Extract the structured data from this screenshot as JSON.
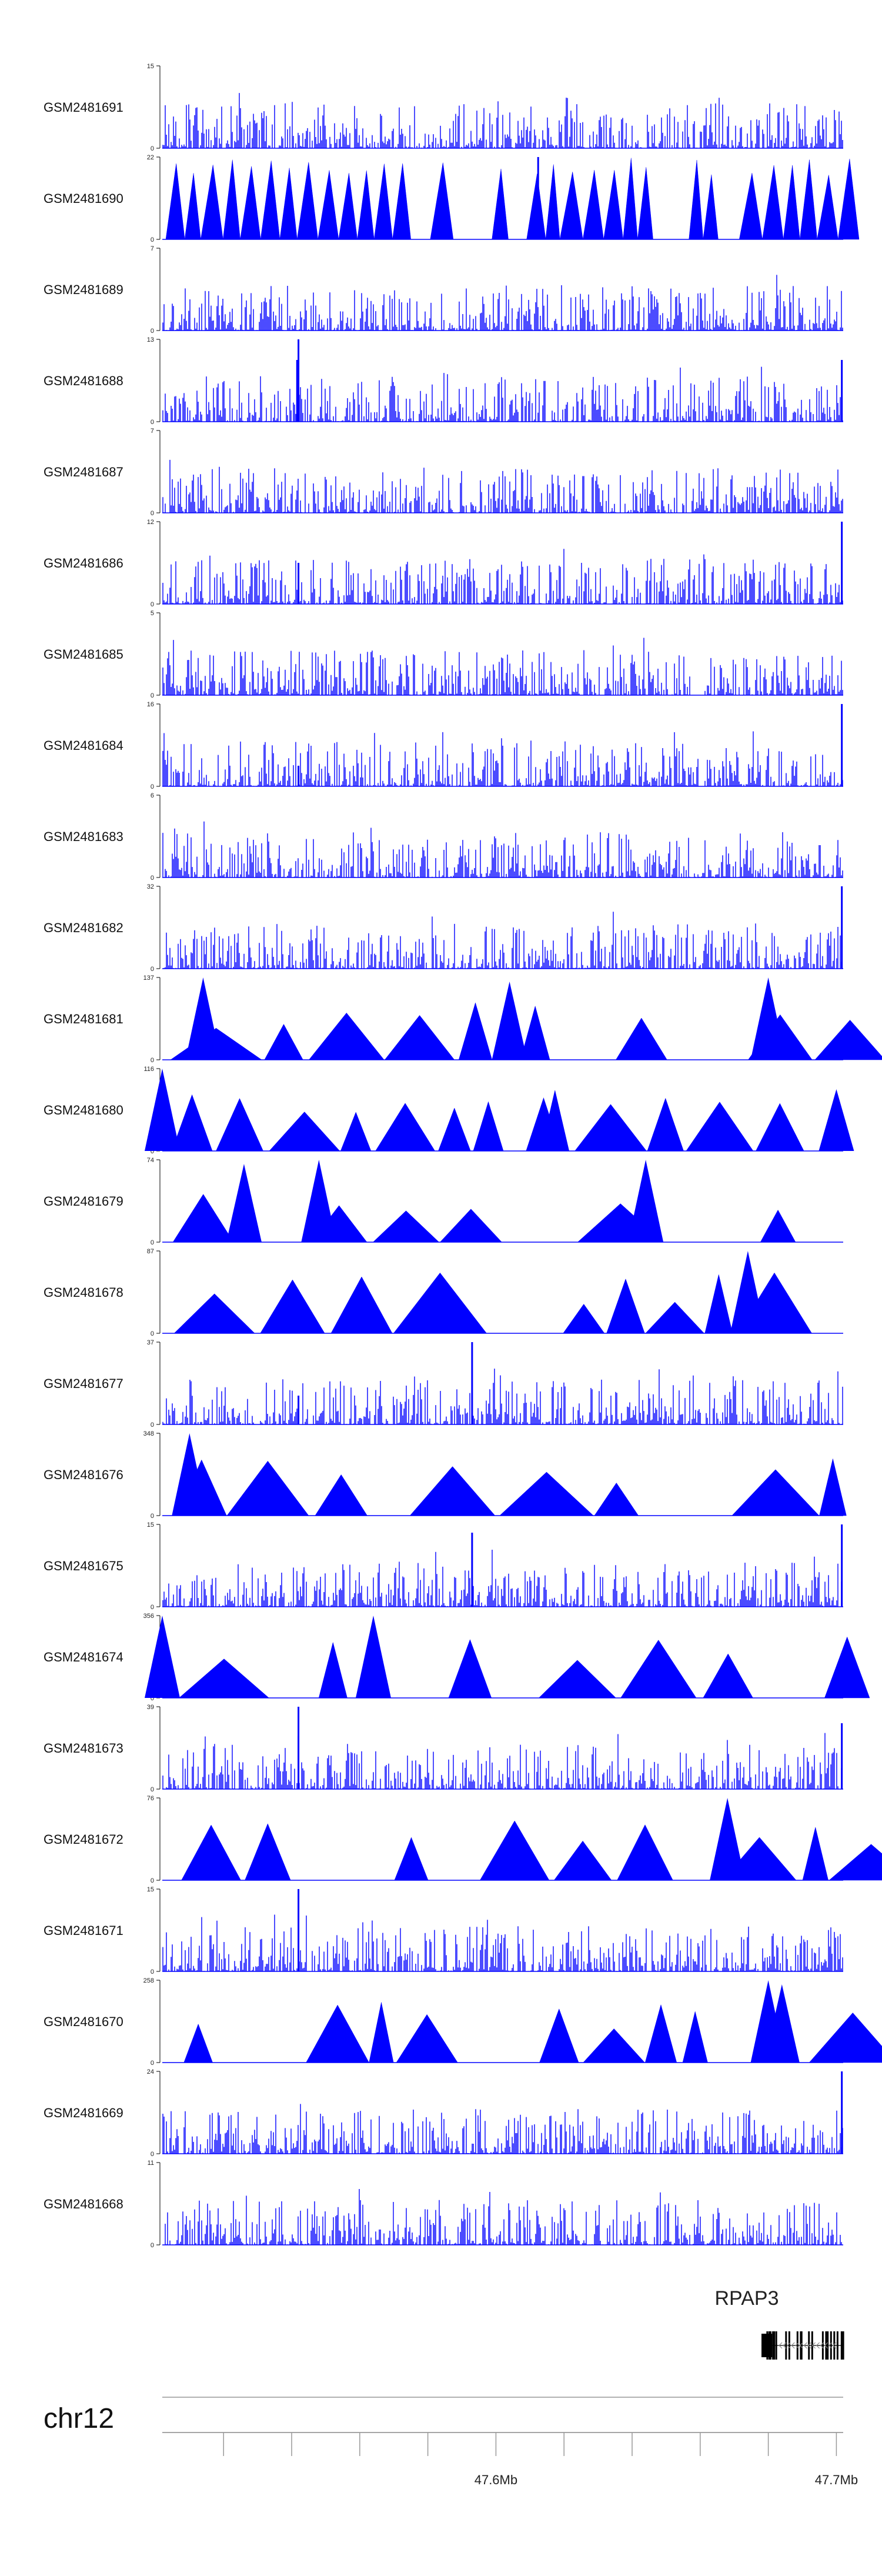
{
  "colors": {
    "signal": "#0000ff",
    "axis": "#000000",
    "ideogram": "#999999",
    "gene": "#000000"
  },
  "chart_data": {
    "type": "area",
    "title": "",
    "region": {
      "chrom": "chr12",
      "start_mb": 47.502,
      "end_mb": 47.702
    },
    "tracks": [
      {
        "name": "GSM2481691",
        "ymax": "15",
        "ymin": "0",
        "style": "dense",
        "peaks": []
      },
      {
        "name": "GSM2481690",
        "ymax": "22",
        "ymin": "0",
        "style": "saw",
        "peaks": [
          [
            0.552,
            1.0
          ]
        ]
      },
      {
        "name": "GSM2481689",
        "ymax": "7",
        "ymin": "0",
        "style": "dense",
        "peaks": []
      },
      {
        "name": "GSM2481688",
        "ymax": "13",
        "ymin": "0",
        "style": "dense",
        "peaks": [
          [
            0.2,
            1.0
          ],
          [
            0.198,
            0.75
          ],
          [
            0.998,
            0.75
          ]
        ]
      },
      {
        "name": "GSM2481687",
        "ymax": "7",
        "ymin": "0",
        "style": "dense",
        "peaks": []
      },
      {
        "name": "GSM2481686",
        "ymax": "12",
        "ymin": "0",
        "style": "dense",
        "peaks": [
          [
            0.2,
            0.5
          ],
          [
            0.998,
            1.0
          ]
        ]
      },
      {
        "name": "GSM2481685",
        "ymax": "5",
        "ymin": "0",
        "style": "dense",
        "peaks": []
      },
      {
        "name": "GSM2481684",
        "ymax": "16",
        "ymin": "0",
        "style": "dense",
        "peaks": [
          [
            0.2,
            0.25
          ],
          [
            0.998,
            1.0
          ]
        ]
      },
      {
        "name": "GSM2481683",
        "ymax": "6",
        "ymin": "0",
        "style": "dense",
        "peaks": []
      },
      {
        "name": "GSM2481682",
        "ymax": "32",
        "ymin": "0",
        "style": "dense",
        "peaks": [
          [
            0.998,
            1.0
          ]
        ]
      },
      {
        "name": "GSM2481681",
        "ymax": "137",
        "ymin": "0",
        "style": "tri",
        "peaks": [
          [
            0.06,
            1.0
          ],
          [
            0.51,
            0.95
          ],
          [
            0.89,
            1.0
          ]
        ]
      },
      {
        "name": "GSM2481680",
        "ymax": "116",
        "ymin": "0",
        "style": "tri",
        "peaks": [
          [
            0.0,
            1.0
          ],
          [
            0.56,
            0.65
          ],
          [
            0.99,
            0.75
          ]
        ]
      },
      {
        "name": "GSM2481679",
        "ymax": "74",
        "ymin": "0",
        "style": "tri",
        "peaks": [
          [
            0.12,
            0.95
          ],
          [
            0.23,
            1.0
          ],
          [
            0.71,
            1.0
          ]
        ]
      },
      {
        "name": "GSM2481678",
        "ymax": "87",
        "ymin": "0",
        "style": "tri",
        "peaks": [
          [
            0.86,
            1.0
          ]
        ]
      },
      {
        "name": "GSM2481677",
        "ymax": "37",
        "ymin": "0",
        "style": "dense",
        "peaks": [
          [
            0.455,
            1.0
          ],
          [
            0.2,
            0.35
          ]
        ]
      },
      {
        "name": "GSM2481676",
        "ymax": "348",
        "ymin": "0",
        "style": "tri",
        "peaks": [
          [
            0.04,
            1.0
          ]
        ]
      },
      {
        "name": "GSM2481675",
        "ymax": "15",
        "ymin": "0",
        "style": "dense",
        "peaks": [
          [
            0.455,
            0.9
          ],
          [
            0.998,
            1.0
          ]
        ]
      },
      {
        "name": "GSM2481674",
        "ymax": "356",
        "ymin": "0",
        "style": "tri",
        "peaks": [
          [
            0.0,
            1.0
          ],
          [
            0.31,
            1.0
          ]
        ]
      },
      {
        "name": "GSM2481673",
        "ymax": "39",
        "ymin": "0",
        "style": "dense",
        "peaks": [
          [
            0.2,
            1.0
          ],
          [
            0.998,
            0.8
          ]
        ]
      },
      {
        "name": "GSM2481672",
        "ymax": "76",
        "ymin": "0",
        "style": "tri",
        "peaks": [
          [
            0.83,
            1.0
          ]
        ]
      },
      {
        "name": "GSM2481671",
        "ymax": "15",
        "ymin": "0",
        "style": "dense",
        "peaks": [
          [
            0.2,
            1.0
          ]
        ]
      },
      {
        "name": "GSM2481670",
        "ymax": "258",
        "ymin": "0",
        "style": "tri",
        "peaks": [
          [
            0.89,
            1.0
          ],
          [
            0.91,
            0.95
          ]
        ]
      },
      {
        "name": "GSM2481669",
        "ymax": "24",
        "ymin": "0",
        "style": "dense",
        "peaks": [
          [
            0.998,
            1.0
          ]
        ]
      },
      {
        "name": "GSM2481668",
        "ymax": "11",
        "ymin": "0",
        "style": "dense",
        "peaks": []
      }
    ],
    "gene": {
      "name": "RPAP3",
      "start_mb": 47.678,
      "end_mb": 47.702,
      "strand": "-"
    },
    "ideogram": {
      "chrom": "chr12"
    },
    "axis": {
      "ticks_mb": [
        47.52,
        47.54,
        47.56,
        47.58,
        47.6,
        47.62,
        47.64,
        47.66,
        47.68,
        47.7
      ],
      "labels": [
        "47.6Mb",
        "47.7Mb"
      ],
      "label_positions_mb": [
        47.6,
        47.7
      ]
    }
  }
}
